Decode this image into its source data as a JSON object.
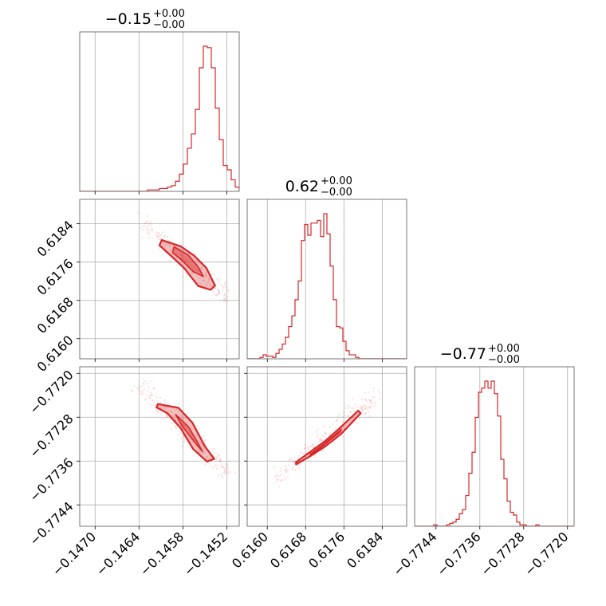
{
  "chart_data": {
    "type": "corner",
    "color": "#d62728",
    "grid": true,
    "parameters": [
      {
        "title_main": "−0.15",
        "title_sup": "+0.00",
        "title_sub": "−0.00"
      },
      {
        "title_main": "0.62",
        "title_sup": "+0.00",
        "title_sub": "−0.00"
      },
      {
        "title_main": "−0.77",
        "title_sup": "+0.00",
        "title_sub": "−0.00"
      }
    ],
    "ranges": [
      [
        -0.14721,
        -0.14503
      ],
      [
        0.61558,
        0.61891
      ],
      [
        -0.77479,
        -0.77188
      ]
    ],
    "ticks": [
      {
        "values": [
          -0.147,
          -0.1464,
          -0.1458,
          -0.1452
        ],
        "labels": [
          "−0.1470",
          "−0.1464",
          "−0.1458",
          "−0.1452"
        ]
      },
      {
        "values": [
          0.616,
          0.6168,
          0.6176,
          0.6184
        ],
        "labels": [
          "0.6160",
          "0.6168",
          "0.6176",
          "0.6184"
        ]
      },
      {
        "values": [
          -0.7744,
          -0.7736,
          -0.7728,
          -0.772
        ],
        "labels": [
          "−0.7744",
          "−0.7736",
          "−0.7728",
          "−0.7720"
        ]
      }
    ],
    "histograms": [
      {
        "bin_start": -0.14721,
        "bin_width": 5.45e-05,
        "counts": [
          0,
          0,
          0,
          0,
          0,
          0,
          0,
          0,
          0,
          0,
          0,
          0,
          0,
          0,
          0,
          0,
          0,
          1,
          1,
          1,
          2,
          2,
          3,
          4,
          7,
          12,
          19,
          30,
          40,
          57,
          86,
          101,
          100,
          86,
          58,
          36,
          18,
          15,
          8,
          3,
          1,
          1,
          0,
          0,
          0,
          0,
          0,
          0,
          0,
          0
        ]
      },
      {
        "bin_start": 0.61558,
        "bin_width": 6.66e-05,
        "counts": [
          0,
          0,
          0,
          0,
          1,
          3,
          2,
          2,
          1,
          4,
          7,
          11,
          16,
          24,
          32,
          44,
          58,
          88,
          100,
          92,
          101,
          101,
          103,
          91,
          108,
          93,
          69,
          44,
          24,
          23,
          13,
          6,
          3,
          3,
          1,
          0,
          0,
          0,
          0,
          0,
          0,
          0,
          0,
          0,
          0,
          0,
          0,
          0,
          0,
          0
        ]
      },
      {
        "bin_start": -0.77479,
        "bin_width": 5.82e-05,
        "counts": [
          0,
          0,
          0,
          0,
          0,
          0,
          1,
          0,
          0,
          0,
          1,
          2,
          3,
          5,
          9,
          12,
          22,
          38,
          53,
          78,
          96,
          99,
          104,
          99,
          104,
          95,
          79,
          48,
          34,
          18,
          10,
          8,
          3,
          1,
          1,
          0,
          0,
          0,
          1,
          0,
          0,
          0,
          0,
          0,
          0,
          0,
          0,
          0,
          0,
          0
        ]
      }
    ],
    "pairs": [
      {
        "x": 0,
        "y": 1,
        "contour_outer": [
          [
            -0.14609,
            0.61806
          ],
          [
            -0.14583,
            0.61793
          ],
          [
            -0.14565,
            0.61774
          ],
          [
            -0.14548,
            0.61748
          ],
          [
            -0.14536,
            0.61711
          ],
          [
            -0.14542,
            0.61702
          ],
          [
            -0.14559,
            0.6171
          ],
          [
            -0.14578,
            0.61747
          ],
          [
            -0.14594,
            0.6177
          ],
          [
            -0.14612,
            0.61795
          ]
        ],
        "contour_inner": [
          [
            -0.14592,
            0.61792
          ],
          [
            -0.14573,
            0.61775
          ],
          [
            -0.1456,
            0.61752
          ],
          [
            -0.14552,
            0.6173
          ],
          [
            -0.14566,
            0.6174
          ],
          [
            -0.1458,
            0.61762
          ],
          [
            -0.14594,
            0.6178
          ]
        ]
      },
      {
        "x": 0,
        "y": 2,
        "contour_outer": [
          [
            -0.14614,
            -0.77256
          ],
          [
            -0.14586,
            -0.77263
          ],
          [
            -0.14567,
            -0.7729
          ],
          [
            -0.1455,
            -0.77333
          ],
          [
            -0.14537,
            -0.77356
          ],
          [
            -0.14547,
            -0.77361
          ],
          [
            -0.14566,
            -0.77338
          ],
          [
            -0.14583,
            -0.773
          ],
          [
            -0.14601,
            -0.77273
          ],
          [
            -0.14616,
            -0.77262
          ]
        ],
        "contour_inner": [
          [
            -0.1459,
            -0.77275
          ],
          [
            -0.14572,
            -0.77298
          ],
          [
            -0.1456,
            -0.77326
          ],
          [
            -0.14553,
            -0.77343
          ],
          [
            -0.14566,
            -0.77322
          ],
          [
            -0.14581,
            -0.77296
          ]
        ]
      },
      {
        "x": 1,
        "y": 2,
        "contour_outer": [
          [
            0.6166,
            -0.77362
          ],
          [
            0.6169,
            -0.77343
          ],
          [
            0.6172,
            -0.77324
          ],
          [
            0.6175,
            -0.77301
          ],
          [
            0.6179,
            -0.77268
          ],
          [
            0.61795,
            -0.77273
          ],
          [
            0.61755,
            -0.7731
          ],
          [
            0.6172,
            -0.77334
          ],
          [
            0.61688,
            -0.77352
          ],
          [
            0.6166,
            -0.77366
          ]
        ],
        "contour_inner": [
          [
            0.6169,
            -0.77347
          ],
          [
            0.6172,
            -0.77328
          ],
          [
            0.61755,
            -0.77302
          ],
          [
            0.61752,
            -0.77307
          ],
          [
            0.61718,
            -0.77331
          ],
          [
            0.6169,
            -0.7735
          ]
        ]
      }
    ]
  }
}
